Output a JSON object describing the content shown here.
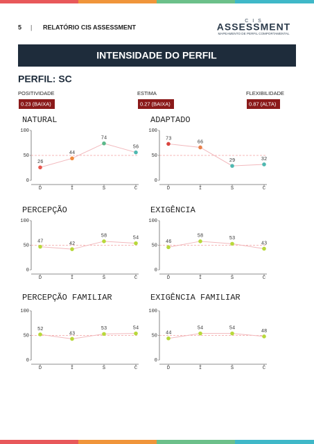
{
  "header": {
    "page_number": "5",
    "separator": "|",
    "title": "RELATÓRIO CIS ASSESSMENT",
    "logo_top": "C I S",
    "logo_main": "ASSESSMENT",
    "logo_sub": "MAPEAMENTO DE PERFIL COMPORTAMENTAL"
  },
  "banner": "INTENSIDADE DO PERFIL",
  "profile": "PERFIL: SC",
  "indicators": [
    {
      "label": "POSITIVIDADE",
      "value": "0.23 (BAIXA)"
    },
    {
      "label": "ESTIMA",
      "value": "0.27 (BAIXA)"
    },
    {
      "label": "FLEXIBILIDADE",
      "value": "0.87 (ALTA)"
    }
  ],
  "chart_data": [
    {
      "type": "line",
      "title": "NATURAL",
      "categories": [
        "D",
        "I",
        "S",
        "C"
      ],
      "values": [
        26,
        44,
        74,
        56
      ],
      "point_colors": [
        "#e8584f",
        "#f08a3c",
        "#5cb88a",
        "#4fb8b0"
      ],
      "line_color": "#f2b8bc",
      "reference": 50,
      "reference_color": "#f2a0a0",
      "ylim": [
        0,
        100
      ],
      "yticks": [
        0,
        50,
        100
      ]
    },
    {
      "type": "line",
      "title": "ADAPTADO",
      "categories": [
        "D",
        "I",
        "S",
        "C"
      ],
      "values": [
        73,
        66,
        29,
        32
      ],
      "point_colors": [
        "#d9453f",
        "#e8804a",
        "#4fb8b0",
        "#4fb8b0"
      ],
      "line_color": "#f2b8bc",
      "reference": 50,
      "reference_color": "#f2a0a0",
      "ylim": [
        0,
        100
      ],
      "yticks": [
        0,
        50,
        100
      ]
    },
    {
      "type": "line",
      "title": "PERCEPÇÃO",
      "categories": [
        "D",
        "I",
        "S",
        "C"
      ],
      "values": [
        47,
        42,
        58,
        54
      ],
      "point_colors": [
        "#b8d83a",
        "#b8d83a",
        "#b8d83a",
        "#b8d83a"
      ],
      "line_color": "#f2b8bc",
      "reference": 50,
      "reference_color": "#f2a0a0",
      "ylim": [
        0,
        100
      ],
      "yticks": [
        0,
        50,
        100
      ]
    },
    {
      "type": "line",
      "title": "EXIGÊNCIA",
      "categories": [
        "D",
        "I",
        "S",
        "C"
      ],
      "values": [
        46,
        58,
        53,
        43
      ],
      "point_colors": [
        "#b8d83a",
        "#b8d83a",
        "#b8d83a",
        "#b8d83a"
      ],
      "line_color": "#f2b8bc",
      "reference": 50,
      "reference_color": "#f2a0a0",
      "ylim": [
        0,
        100
      ],
      "yticks": [
        0,
        50,
        100
      ]
    },
    {
      "type": "line",
      "title": "PERCEPÇÃO FAMILIAR",
      "categories": [
        "D",
        "I",
        "S",
        "C"
      ],
      "values": [
        52,
        43,
        53,
        54
      ],
      "point_colors": [
        "#b8d83a",
        "#b8d83a",
        "#b8d83a",
        "#b8d83a"
      ],
      "line_color": "#f2b8bc",
      "reference": 50,
      "reference_color": "#f2a0a0",
      "ylim": [
        0,
        100
      ],
      "yticks": [
        0,
        50,
        100
      ]
    },
    {
      "type": "line",
      "title": "EXIGÊNCIA FAMILIAR",
      "categories": [
        "D",
        "I",
        "S",
        "C"
      ],
      "values": [
        44,
        54,
        54,
        48
      ],
      "point_colors": [
        "#b8d83a",
        "#b8d83a",
        "#b8d83a",
        "#b8d83a"
      ],
      "line_color": "#f2b8bc",
      "reference": 50,
      "reference_color": "#f2a0a0",
      "ylim": [
        0,
        100
      ],
      "yticks": [
        0,
        50,
        100
      ]
    }
  ]
}
